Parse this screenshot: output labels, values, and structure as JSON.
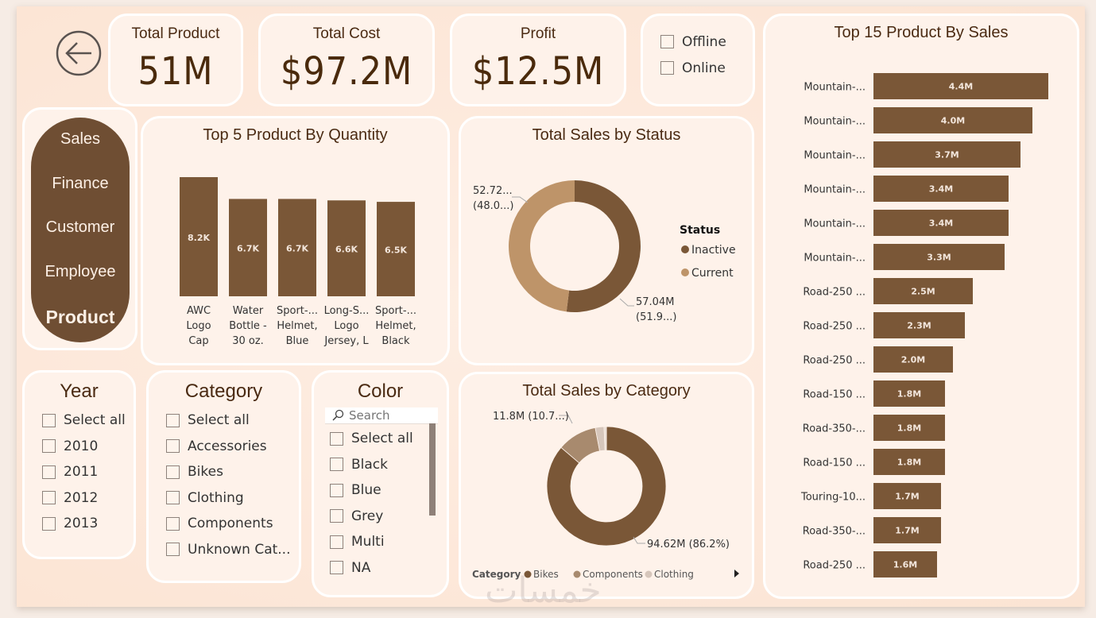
{
  "nav": {
    "back_icon": "arrow-left-circle-icon",
    "items": [
      {
        "label": "Sales",
        "active": false
      },
      {
        "label": "Finance",
        "active": false
      },
      {
        "label": "Customer",
        "active": false
      },
      {
        "label": "Employee",
        "active": false
      },
      {
        "label": "Product",
        "active": true
      }
    ]
  },
  "kpis": [
    {
      "title": "Total Product",
      "value": "51M"
    },
    {
      "title": "Total Cost",
      "value": "$97.2M"
    },
    {
      "title": "Profit",
      "value": "$12.5M"
    }
  ],
  "channel_slicer": {
    "options": [
      {
        "label": "Offline",
        "checked": false
      },
      {
        "label": "Online",
        "checked": false
      }
    ]
  },
  "year_slicer": {
    "title": "Year",
    "options": [
      {
        "label": "Select all",
        "checked": false
      },
      {
        "label": "2010",
        "checked": false
      },
      {
        "label": "2011",
        "checked": false
      },
      {
        "label": "2012",
        "checked": false
      },
      {
        "label": "2013",
        "checked": false
      }
    ]
  },
  "category_slicer": {
    "title": "Category",
    "options": [
      {
        "label": "Select all",
        "checked": false
      },
      {
        "label": "Accessories",
        "checked": false
      },
      {
        "label": "Bikes",
        "checked": false
      },
      {
        "label": "Clothing",
        "checked": false
      },
      {
        "label": "Components",
        "checked": false
      },
      {
        "label": "Unknown Cat...",
        "checked": false
      }
    ]
  },
  "color_slicer": {
    "title": "Color",
    "search_placeholder": "Search",
    "search_icon": "search-icon",
    "options": [
      {
        "label": "Select all",
        "checked": false
      },
      {
        "label": "Black",
        "checked": false
      },
      {
        "label": "Blue",
        "checked": false
      },
      {
        "label": "Grey",
        "checked": false
      },
      {
        "label": "Multi",
        "checked": false
      },
      {
        "label": "NA",
        "checked": false
      }
    ]
  },
  "colors": {
    "bar": "#7a5737",
    "inactive": "#7a5737",
    "current": "#be9469",
    "components": "#a88a6e",
    "clothing": "#d6c6bb",
    "accessories": "#e9ddd4",
    "label_text": "#f3e6dc"
  },
  "chart_data": [
    {
      "id": "top5_quantity",
      "type": "bar",
      "title": "Top 5 Product By Quantity",
      "categories": [
        [
          "AWC",
          "Logo",
          "Cap"
        ],
        [
          "Water",
          "Bottle -",
          "30 oz."
        ],
        [
          "Sport-...",
          "Helmet,",
          "Blue"
        ],
        [
          "Long-S...",
          "Logo",
          "Jersey, L"
        ],
        [
          "Sport-...",
          "Helmet,",
          "Black"
        ]
      ],
      "values": [
        8200,
        6700,
        6700,
        6600,
        6500
      ],
      "data_labels": [
        "8.2K",
        "6.7K",
        "6.7K",
        "6.6K",
        "6.5K"
      ],
      "xlabel": "",
      "ylabel": "",
      "ylim": [
        0,
        8200
      ],
      "grid": false
    },
    {
      "id": "sales_by_status",
      "type": "pie",
      "title": "Total Sales by Status",
      "legend_title": "Status",
      "legend_position": "right",
      "slices": [
        {
          "name": "Inactive",
          "value": 57.04,
          "percent": 51.9,
          "label": [
            "57.04M",
            "(51.9...)"
          ]
        },
        {
          "name": "Current",
          "value": 52.72,
          "percent": 48.0,
          "label": [
            "52.72...",
            "(48.0...)"
          ]
        }
      ],
      "unit": "M"
    },
    {
      "id": "sales_by_category",
      "type": "pie",
      "title": "Total Sales by Category",
      "legend_title": "Category",
      "legend_position": "bottom",
      "legend_entries": [
        "Bikes",
        "Components",
        "Clothing"
      ],
      "slices": [
        {
          "name": "Bikes",
          "value": 94.62,
          "percent": 86.2,
          "label": "94.62M (86.2%)"
        },
        {
          "name": "Components",
          "value": 11.8,
          "percent": 10.7,
          "label": "11.8M (10.7...)"
        },
        {
          "name": "Clothing",
          "value": 2.6,
          "percent": 2.4,
          "label": ""
        },
        {
          "name": "Accessories",
          "value": 0.7,
          "percent": 0.7,
          "label": ""
        }
      ],
      "unit": "M"
    },
    {
      "id": "top15_sales",
      "type": "bar",
      "orientation": "horizontal",
      "title": "Top 15 Product By Sales",
      "categories": [
        "Mountain-...",
        "Mountain-...",
        "Mountain-...",
        "Mountain-...",
        "Mountain-...",
        "Mountain-...",
        "Road-250 ...",
        "Road-250 ...",
        "Road-250 ...",
        "Road-150 ...",
        "Road-350-...",
        "Road-150 ...",
        "Touring-10...",
        "Road-350-...",
        "Road-250 ..."
      ],
      "values": [
        4.4,
        4.0,
        3.7,
        3.4,
        3.4,
        3.3,
        2.5,
        2.3,
        2.0,
        1.8,
        1.8,
        1.8,
        1.7,
        1.7,
        1.6
      ],
      "data_labels": [
        "4.4M",
        "4.0M",
        "3.7M",
        "3.4M",
        "3.4M",
        "3.3M",
        "2.5M",
        "2.3M",
        "2.0M",
        "1.8M",
        "1.8M",
        "1.8M",
        "1.7M",
        "1.7M",
        "1.6M"
      ],
      "unit": "M",
      "xlim": [
        0,
        4.4
      ],
      "grid": false
    }
  ]
}
